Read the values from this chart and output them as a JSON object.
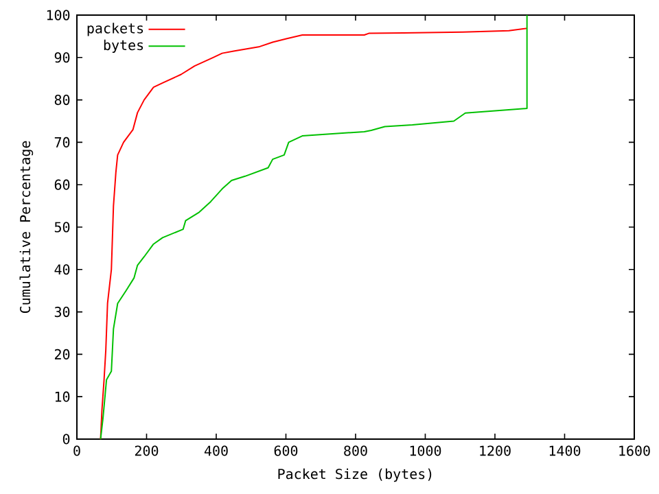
{
  "chart_data": {
    "type": "line",
    "xlabel": "Packet Size (bytes)",
    "ylabel": "Cumulative Percentage",
    "xlim": [
      0,
      1600
    ],
    "ylim": [
      0,
      100
    ],
    "xticks": [
      0,
      200,
      400,
      600,
      800,
      1000,
      1200,
      1400,
      1600
    ],
    "yticks": [
      0,
      10,
      20,
      30,
      40,
      50,
      60,
      70,
      80,
      90,
      100
    ],
    "grid": false,
    "legend": "top left",
    "marker": "none",
    "line_style": "solid",
    "series": [
      {
        "name": "packets",
        "color": "#ff0000",
        "x": [
          68,
          72,
          78,
          83,
          88,
          99,
          105,
          112,
          117,
          134,
          161,
          174,
          193,
          220,
          246,
          299,
          338,
          391,
          417,
          450,
          522,
          562,
          601,
          647,
          825,
          838,
          937,
          1108,
          1240,
          1292
        ],
        "values": [
          0,
          7,
          14,
          21,
          32,
          40,
          55,
          63,
          67,
          70,
          73,
          77,
          80,
          83,
          84,
          86,
          88,
          90,
          91,
          91.5,
          92.5,
          93.6,
          94.4,
          95.3,
          95.3,
          95.7,
          95.8,
          96,
          96.3,
          96.9
        ]
      },
      {
        "name": "bytes",
        "color": "#00c000",
        "x": [
          68,
          75,
          85,
          99,
          105,
          117,
          141,
          164,
          174,
          193,
          220,
          246,
          305,
          312,
          351,
          384,
          417,
          444,
          483,
          549,
          562,
          595,
          608,
          647,
          825,
          845,
          884,
          963,
          1082,
          1115,
          1246,
          1292,
          1292
        ],
        "values": [
          0,
          5,
          14,
          16,
          26,
          32,
          35,
          38,
          41,
          43,
          46,
          47.5,
          49.5,
          51.5,
          53.5,
          56,
          59,
          61,
          62,
          64,
          66,
          67,
          70,
          71.5,
          72.5,
          72.8,
          73.7,
          74.1,
          75,
          76.9,
          77.7,
          78,
          100
        ]
      }
    ]
  }
}
